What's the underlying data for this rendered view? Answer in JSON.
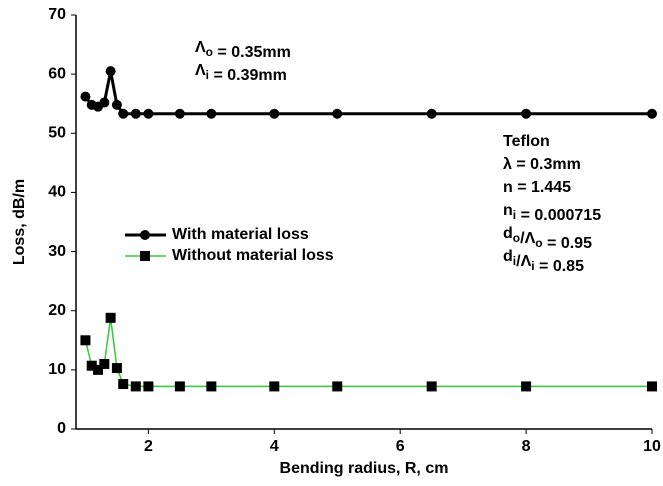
{
  "chart_data": {
    "type": "line",
    "xlabel": "Bending radius, R, cm",
    "ylabel": "Loss, dB/m",
    "x": [
      1,
      1.1,
      1.2,
      1.3,
      1.4,
      1.5,
      1.6,
      1.8,
      2,
      2.5,
      3,
      4,
      5,
      6.5,
      8,
      10
    ],
    "series": [
      {
        "name": "With material loss",
        "color": "#000000",
        "marker_color": "#000000",
        "marker": "circle",
        "values": [
          56.2,
          54.8,
          54.5,
          55.2,
          60.5,
          54.8,
          53.3,
          53.3,
          53.3,
          53.3,
          53.3,
          53.3,
          53.3,
          53.3,
          53.3,
          53.3
        ]
      },
      {
        "name": "Without material loss",
        "color": "#33cc33",
        "marker_color": "#000000",
        "marker": "square",
        "values": [
          15,
          10.7,
          10,
          11,
          18.8,
          10.3,
          7.6,
          7.2,
          7.2,
          7.2,
          7.2,
          7.2,
          7.2,
          7.2,
          7.2,
          7.2
        ]
      }
    ],
    "xlim": [
      0.85,
      10
    ],
    "xticks": [
      2,
      4,
      6,
      8,
      10
    ],
    "ylim": [
      0,
      70
    ],
    "yticks": [
      0,
      10,
      20,
      30,
      40,
      50,
      60,
      70
    ],
    "annotations": [
      [
        [
          {
            "t": "Λ"
          },
          {
            "sub": "o"
          },
          {
            "t": " = 0.35mm"
          }
        ],
        [
          {
            "t": "Λ"
          },
          {
            "sub": "i"
          },
          {
            "t": " = 0.39mm"
          }
        ]
      ],
      [
        [
          {
            "t": "Teflon"
          }
        ],
        [
          {
            "t": "λ = 0.3mm"
          }
        ],
        [
          {
            "t": "n = 1.445"
          }
        ],
        [
          {
            "t": "n"
          },
          {
            "sub": "i"
          },
          {
            "t": " = 0.000715"
          }
        ],
        [
          {
            "t": "d"
          },
          {
            "sub": "o"
          },
          {
            "t": "/Λ"
          },
          {
            "sub": "o"
          },
          {
            "t": " = 0.95"
          }
        ],
        [
          {
            "t": "d"
          },
          {
            "sub": "i"
          },
          {
            "t": "/Λ"
          },
          {
            "sub": "i"
          },
          {
            "t": " = 0.85"
          }
        ]
      ]
    ]
  }
}
